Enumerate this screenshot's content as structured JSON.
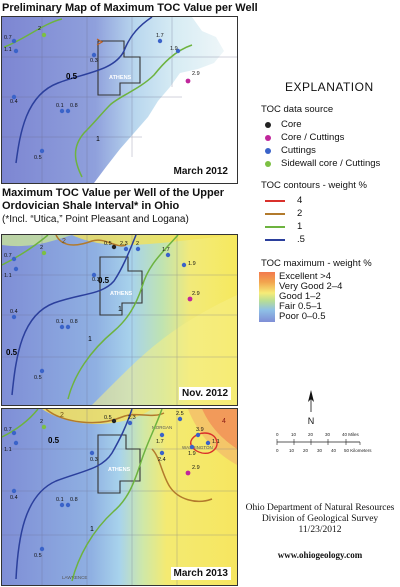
{
  "maps": [
    {
      "title": "Preliminary Map of Maximum TOC Value per Well",
      "date": "March 2012",
      "contours": [
        "0.5",
        "1"
      ],
      "wells": [
        "0.7",
        "1.1",
        "2",
        "0.3",
        "1.7",
        "1.9",
        "2.9",
        "0.4",
        "0.1",
        "0.8",
        "0.5"
      ],
      "county": "ATHENS"
    },
    {
      "title": "Maximum TOC Value per Well of the Upper Ordovician Shale Interval* in Ohio",
      "subtitle": "(*Incl. “Utica,” Point Pleasant and Logana)",
      "date": "Nov. 2012",
      "contours": [
        "0.5",
        "1",
        "2",
        "0.5",
        "1"
      ],
      "wells": [
        "0.7",
        "1.1",
        "2",
        "0.5",
        "2.3",
        "2",
        "1.7",
        "0.3",
        "1.9",
        "2.9",
        "0.4",
        "0.1",
        "0.8",
        "0.5"
      ],
      "county": "ATHENS"
    },
    {
      "date": "March 2013",
      "contours": [
        "0.5",
        "1",
        "2",
        "4"
      ],
      "wells": [
        "0.7",
        "1.1",
        "2",
        "0.5",
        "2.3",
        "2.5",
        "1.7",
        "0.3",
        "3.9",
        "1.1",
        "1.9",
        "2.4",
        "2.9",
        "0.4",
        "0.1",
        "0.8",
        "0.5"
      ],
      "county": "ATHENS",
      "county_labels": [
        "MORGAN",
        "WASHINGTON",
        "LAWRENCE"
      ]
    }
  ],
  "explanation": {
    "title": "EXPLANATION",
    "source_heading": "TOC data source",
    "sources": [
      {
        "label": "Core",
        "color": "#222222"
      },
      {
        "label": "Core / Cuttings",
        "color": "#c0269b"
      },
      {
        "label": "Cuttings",
        "color": "#3a63c9"
      },
      {
        "label": "Sidewall core / Cuttings",
        "color": "#7cc043"
      }
    ],
    "contour_heading": "TOC contours - weight %",
    "contours": [
      {
        "label": "4",
        "color": "#d9302b"
      },
      {
        "label": "2",
        "color": "#b27a2c"
      },
      {
        "label": "1",
        "color": "#6db33f"
      },
      {
        "label": ".5",
        "color": "#2b3f9c"
      }
    ],
    "max_heading": "TOC maximum - weight %",
    "classes": [
      "Excellent >4",
      "Very Good 2–4",
      "Good 1–2",
      "Fair 0.5–1",
      "Poor 0–0.5"
    ]
  },
  "scale": {
    "miles_ticks": [
      "0",
      "10",
      "20",
      "30",
      "40 Miles"
    ],
    "km_ticks": [
      "0",
      "10",
      "20",
      "30",
      "40",
      "50 Kilometers"
    ]
  },
  "north_label": "N",
  "credit": {
    "line1": "Ohio Department of Natural Resources",
    "line2": "Division of Geological Survey",
    "date": "11/23/2012",
    "website": "www.ohiogeology.com"
  }
}
